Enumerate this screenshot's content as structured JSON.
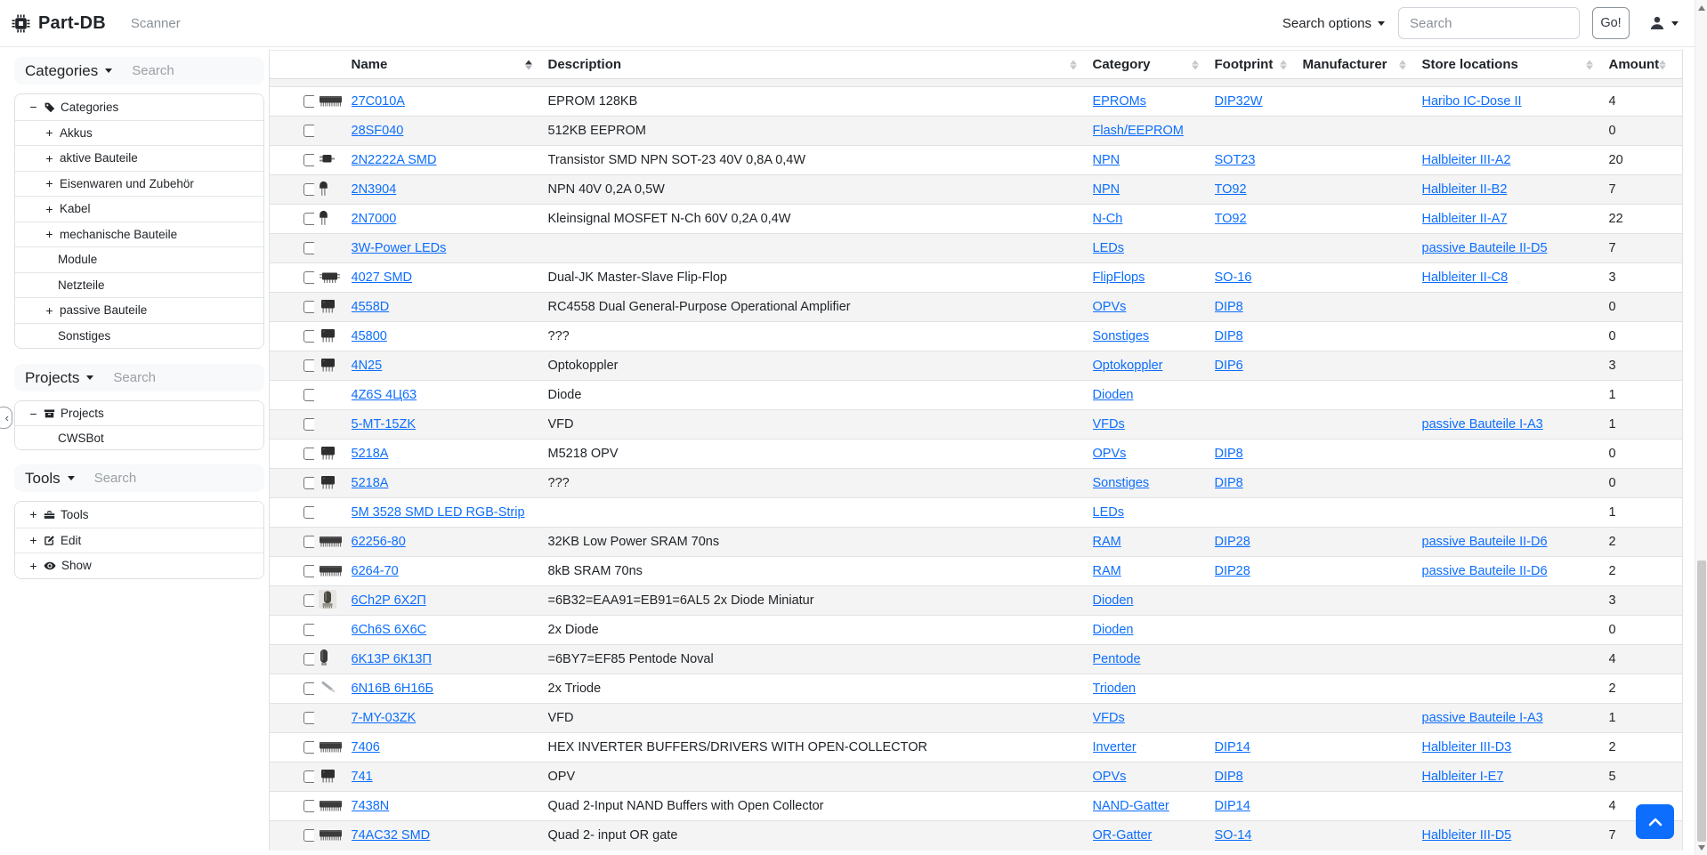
{
  "navbar": {
    "brand": "Part-DB",
    "scanner": "Scanner",
    "search_options": "Search options",
    "search_placeholder": "Search",
    "go_label": "Go!"
  },
  "colors": {
    "accent": "#0d6efd",
    "link": "#0d6efd",
    "stripe": "#f2f3f4"
  },
  "sidebar": {
    "panels": [
      {
        "title": "Categories",
        "search_placeholder": "Search",
        "tree": [
          {
            "label": "Categories",
            "toggle": "minus",
            "icon": "tag-icon",
            "level": 0
          },
          {
            "label": "Akkus",
            "toggle": "plus",
            "icon": null,
            "level": 1
          },
          {
            "label": "aktive Bauteile",
            "toggle": "plus",
            "icon": null,
            "level": 1
          },
          {
            "label": "Eisenwaren und Zubehör",
            "toggle": "plus",
            "icon": null,
            "level": 1
          },
          {
            "label": "Kabel",
            "toggle": "plus",
            "icon": null,
            "level": 1
          },
          {
            "label": "mechanische Bauteile",
            "toggle": "plus",
            "icon": null,
            "level": 1
          },
          {
            "label": "Module",
            "toggle": null,
            "icon": null,
            "level": 1
          },
          {
            "label": "Netzteile",
            "toggle": null,
            "icon": null,
            "level": 1
          },
          {
            "label": "passive Bauteile",
            "toggle": "plus",
            "icon": null,
            "level": 1
          },
          {
            "label": "Sonstiges",
            "toggle": null,
            "icon": null,
            "level": 1
          }
        ]
      },
      {
        "title": "Projects",
        "search_placeholder": "Search",
        "tree": [
          {
            "label": "Projects",
            "toggle": "minus",
            "icon": "project-icon",
            "level": 0
          },
          {
            "label": "CWSBot",
            "toggle": null,
            "icon": null,
            "level": 1
          }
        ]
      },
      {
        "title": "Tools",
        "search_placeholder": "Search",
        "tree": [
          {
            "label": "Tools",
            "toggle": "plus",
            "icon": "toolbox-icon",
            "level": 0
          },
          {
            "label": "Edit",
            "toggle": "plus",
            "icon": "edit-icon",
            "level": 0
          },
          {
            "label": "Show",
            "toggle": "plus",
            "icon": "eye-icon",
            "level": 0
          }
        ]
      }
    ]
  },
  "table": {
    "columns": [
      {
        "label": "Name",
        "sorted": "asc"
      },
      {
        "label": "Description",
        "sorted": null
      },
      {
        "label": "Category",
        "sorted": null
      },
      {
        "label": "Footprint",
        "sorted": null
      },
      {
        "label": "Manufacturer",
        "sorted": null
      },
      {
        "label": "Store locations",
        "sorted": null
      },
      {
        "label": "Amount",
        "sorted": null
      }
    ],
    "rows": [
      {
        "name": "27C010A",
        "thumb": "chip-long",
        "description": "EPROM 128KB",
        "category": "EPROMs",
        "footprint": "DIP32W",
        "manufacturer": "",
        "store_location": "Haribo IC-Dose II",
        "amount": "4"
      },
      {
        "name": "28SF040",
        "thumb": "none",
        "description": "512KB EEPROM",
        "category": "Flash/EEPROM",
        "footprint": "",
        "manufacturer": "",
        "store_location": "",
        "amount": "0"
      },
      {
        "name": "2N2222A SMD",
        "thumb": "sot23",
        "description": "Transistor SMD NPN SOT-23 40V 0,8A 0,4W",
        "category": "NPN",
        "footprint": "SOT23",
        "manufacturer": "",
        "store_location": "Halbleiter III-A2",
        "amount": "20"
      },
      {
        "name": "2N3904",
        "thumb": "to92",
        "description": "NPN 40V 0,2A 0,5W",
        "category": "NPN",
        "footprint": "TO92",
        "manufacturer": "",
        "store_location": "Halbleiter II-B2",
        "amount": "7"
      },
      {
        "name": "2N7000",
        "thumb": "to92",
        "description": "Kleinsignal MOSFET N-Ch 60V 0,2A 0,4W",
        "category": "N-Ch",
        "footprint": "TO92",
        "manufacturer": "",
        "store_location": "Halbleiter II-A7",
        "amount": "22"
      },
      {
        "name": "3W-Power LEDs",
        "thumb": "none",
        "description": "",
        "category": "LEDs",
        "footprint": "",
        "manufacturer": "",
        "store_location": "passive Bauteile II-D5",
        "amount": "7"
      },
      {
        "name": "4027 SMD",
        "thumb": "so16",
        "description": "Dual-JK Master-Slave Flip-Flop",
        "category": "FlipFlops",
        "footprint": "SO-16",
        "manufacturer": "",
        "store_location": "Halbleiter II-C8",
        "amount": "3"
      },
      {
        "name": "4558D",
        "thumb": "dip8",
        "description": "RC4558 Dual General-Purpose Operational Amplifier",
        "category": "OPVs",
        "footprint": "DIP8",
        "manufacturer": "",
        "store_location": "",
        "amount": "0"
      },
      {
        "name": "45800",
        "thumb": "dip8",
        "description": "???",
        "category": "Sonstiges",
        "footprint": "DIP8",
        "manufacturer": "",
        "store_location": "",
        "amount": "0"
      },
      {
        "name": "4N25",
        "thumb": "dip8",
        "description": "Optokoppler",
        "category": "Optokoppler",
        "footprint": "DIP6",
        "manufacturer": "",
        "store_location": "",
        "amount": "3"
      },
      {
        "name": "4Z6S 4Ц63",
        "thumb": "none",
        "description": "Diode",
        "category": "Dioden",
        "footprint": "",
        "manufacturer": "",
        "store_location": "",
        "amount": "1"
      },
      {
        "name": "5-MT-15ZK",
        "thumb": "none",
        "description": "VFD",
        "category": "VFDs",
        "footprint": "",
        "manufacturer": "",
        "store_location": "passive Bauteile I-A3",
        "amount": "1"
      },
      {
        "name": "5218A",
        "thumb": "dip8",
        "description": "M5218 OPV",
        "category": "OPVs",
        "footprint": "DIP8",
        "manufacturer": "",
        "store_location": "",
        "amount": "0"
      },
      {
        "name": "5218A",
        "thumb": "dip8",
        "description": "???",
        "category": "Sonstiges",
        "footprint": "DIP8",
        "manufacturer": "",
        "store_location": "",
        "amount": "0"
      },
      {
        "name": "5M 3528 SMD LED RGB-Strip",
        "thumb": "none",
        "description": "",
        "category": "LEDs",
        "footprint": "",
        "manufacturer": "",
        "store_location": "",
        "amount": "1"
      },
      {
        "name": "62256-80",
        "thumb": "chip-long",
        "description": "32KB Low Power SRAM 70ns",
        "category": "RAM",
        "footprint": "DIP28",
        "manufacturer": "",
        "store_location": "passive Bauteile II-D6",
        "amount": "2"
      },
      {
        "name": "6264-70",
        "thumb": "chip-long",
        "description": "8kB SRAM 70ns",
        "category": "RAM",
        "footprint": "DIP28",
        "manufacturer": "",
        "store_location": "passive Bauteile II-D6",
        "amount": "2"
      },
      {
        "name": "6Ch2P 6Х2П",
        "thumb": "tube-photo",
        "description": "=6B32=EAA91=EB91=6AL5 2x Diode Miniatur",
        "category": "Dioden",
        "footprint": "",
        "manufacturer": "",
        "store_location": "",
        "amount": "3"
      },
      {
        "name": "6Ch6S 6X6C",
        "thumb": "none",
        "description": "2x Diode",
        "category": "Dioden",
        "footprint": "",
        "manufacturer": "",
        "store_location": "",
        "amount": "0"
      },
      {
        "name": "6K13P 6К13П",
        "thumb": "tube",
        "description": "=6BY7=EF85 Pentode Noval",
        "category": "Pentode",
        "footprint": "",
        "manufacturer": "",
        "store_location": "",
        "amount": "4"
      },
      {
        "name": "6N16B 6Н16Б",
        "thumb": "tube-diag",
        "description": "2x Triode",
        "category": "Trioden",
        "footprint": "",
        "manufacturer": "",
        "store_location": "",
        "amount": "2"
      },
      {
        "name": "7-MY-03ZK",
        "thumb": "none",
        "description": "VFD",
        "category": "VFDs",
        "footprint": "",
        "manufacturer": "",
        "store_location": "passive Bauteile I-A3",
        "amount": "1"
      },
      {
        "name": "7406",
        "thumb": "chip-long",
        "description": "HEX INVERTER BUFFERS/DRIVERS WITH OPEN-COLLECTOR",
        "category": "Inverter",
        "footprint": "DIP14",
        "manufacturer": "",
        "store_location": "Halbleiter III-D3",
        "amount": "2"
      },
      {
        "name": "741",
        "thumb": "dip8",
        "description": "OPV",
        "category": "OPVs",
        "footprint": "DIP8",
        "manufacturer": "",
        "store_location": "Halbleiter I-E7",
        "amount": "5"
      },
      {
        "name": "7438N",
        "thumb": "chip-long",
        "description": "Quad 2-Input NAND Buffers with Open Collector",
        "category": "NAND-Gatter",
        "footprint": "DIP14",
        "manufacturer": "",
        "store_location": "",
        "amount": "4"
      },
      {
        "name": "74AC32 SMD",
        "thumb": "chip-long",
        "description": "Quad 2- input OR gate",
        "category": "OR-Gatter",
        "footprint": "SO-14",
        "manufacturer": "",
        "store_location": "Halbleiter III-D5",
        "amount": "7"
      }
    ]
  }
}
